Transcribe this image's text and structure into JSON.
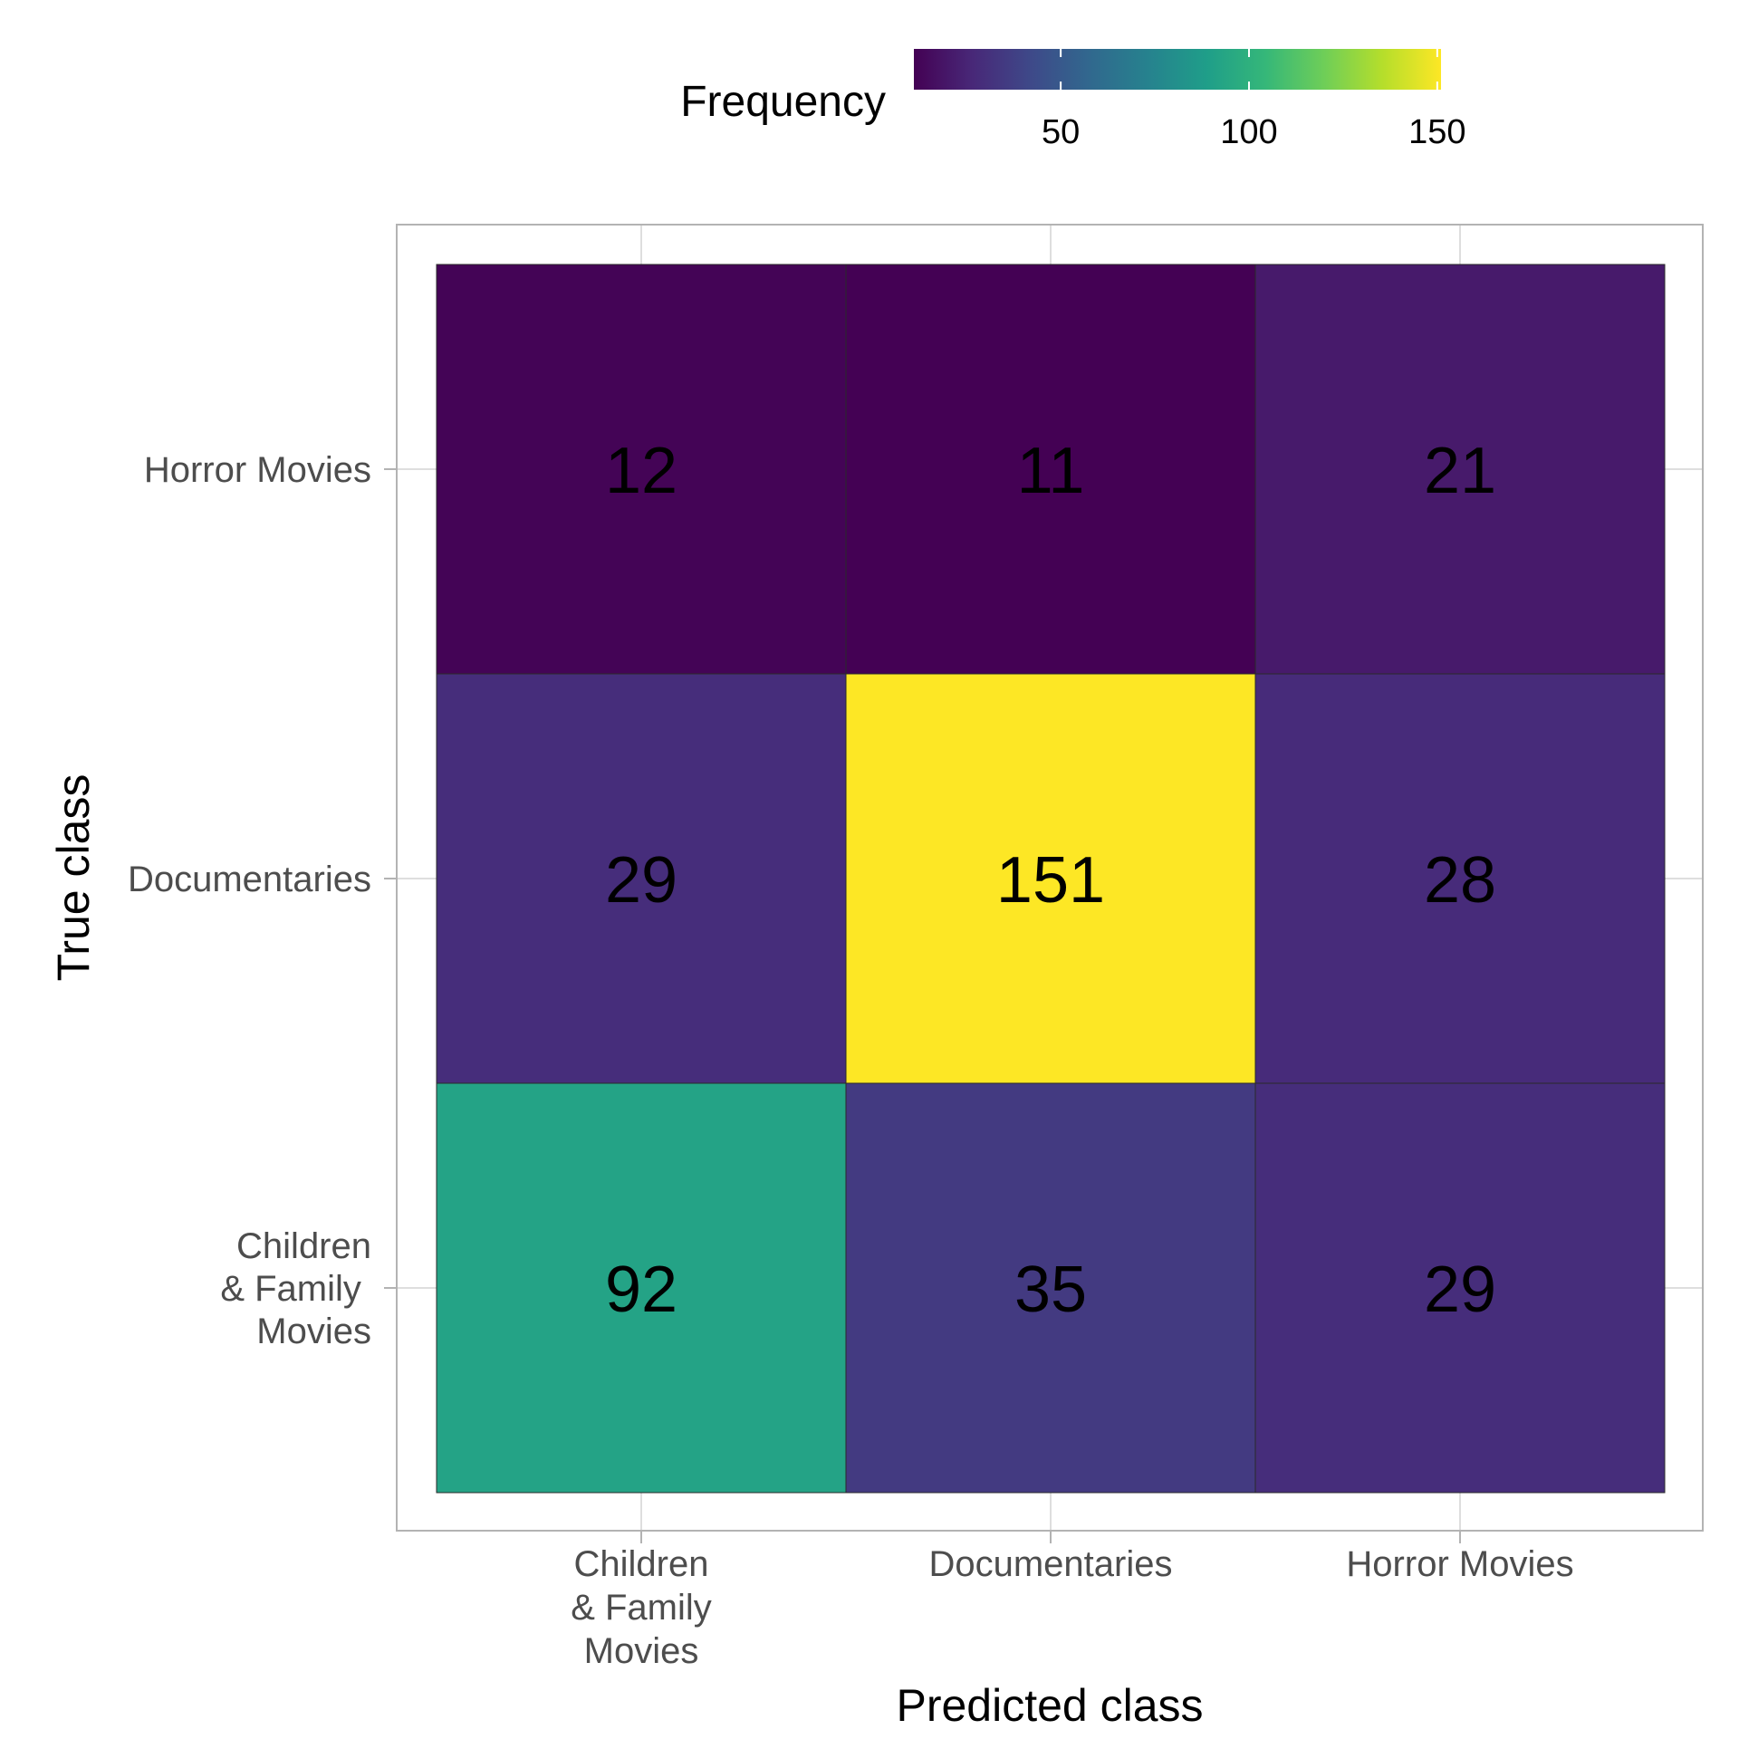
{
  "chart_data": {
    "type": "heatmap",
    "title": "",
    "xlabel": "Predicted class",
    "ylabel": "True class",
    "x_categories": [
      [
        "Children",
        "& Family",
        "Movies"
      ],
      [
        "Documentaries"
      ],
      [
        "Horror Movies"
      ]
    ],
    "y_categories": [
      [
        "Children",
        "& Family ",
        "Movies"
      ],
      [
        "Documentaries"
      ],
      [
        "Horror Movies"
      ]
    ],
    "values": [
      [
        92,
        35,
        29
      ],
      [
        29,
        151,
        28
      ],
      [
        12,
        11,
        21
      ]
    ],
    "value_labels": [
      [
        "92",
        "35",
        "29"
      ],
      [
        "29",
        "151",
        "28"
      ],
      [
        "12",
        "11",
        "21"
      ]
    ],
    "legend": {
      "title": "Frequency",
      "placement": "top",
      "min": 11,
      "max": 151,
      "ticks": [
        50,
        100,
        150
      ],
      "tick_labels": [
        "50",
        "100",
        "150"
      ]
    },
    "colorscale": "viridis",
    "grid": true
  },
  "colors": {
    "panel_border": "#b3b3b3",
    "grid": "#dedede",
    "cell_border": "#2a2a2a",
    "viridis_stops": [
      "#440154",
      "#482878",
      "#3e4989",
      "#31688e",
      "#26828e",
      "#1f9e89",
      "#35b779",
      "#6ece58",
      "#b5de2b",
      "#fde725"
    ]
  }
}
